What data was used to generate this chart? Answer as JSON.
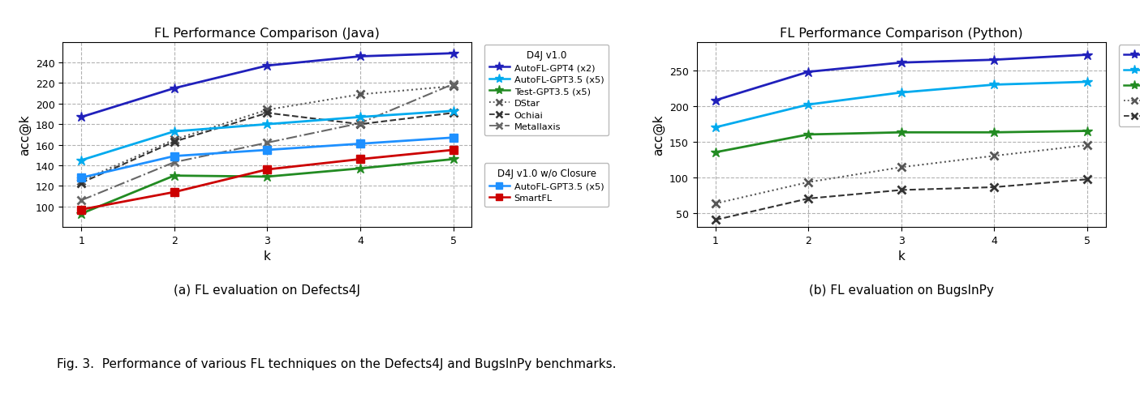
{
  "java_title": "FL Performance Comparison (Java)",
  "python_title": "FL Performance Comparison (Python)",
  "k": [
    1,
    2,
    3,
    4,
    5
  ],
  "java": {
    "autofl_gpt4": [
      187,
      215,
      237,
      246,
      249
    ],
    "autofl_gpt35": [
      145,
      173,
      180,
      187,
      193
    ],
    "test_gpt35": [
      93,
      130,
      129,
      137,
      146
    ],
    "dstar": [
      125,
      165,
      194,
      209,
      217
    ],
    "ochiai": [
      123,
      163,
      191,
      180,
      191
    ],
    "metallaxis": [
      106,
      143,
      162,
      181,
      219
    ],
    "autofl_gpt35_noclosure": [
      128,
      149,
      155,
      161,
      167
    ],
    "smartfl": [
      97,
      114,
      136,
      146,
      155
    ]
  },
  "python": {
    "autofl_gpt4": [
      208,
      248,
      261,
      265,
      272
    ],
    "autofl_gpt35": [
      170,
      202,
      219,
      230,
      234
    ],
    "test_gpt35": [
      135,
      160,
      163,
      163,
      165
    ],
    "dstar": [
      63,
      93,
      114,
      130,
      145
    ],
    "ochiai": [
      40,
      70,
      82,
      86,
      97
    ]
  },
  "caption_a": "(a) FL evaluation on Defects4J",
  "caption_b": "(b) FL evaluation on BugsInPy",
  "fig_caption": "Fig. 3.  Performance of various FL techniques on the Defects4J and BugsInPy benchmarks."
}
